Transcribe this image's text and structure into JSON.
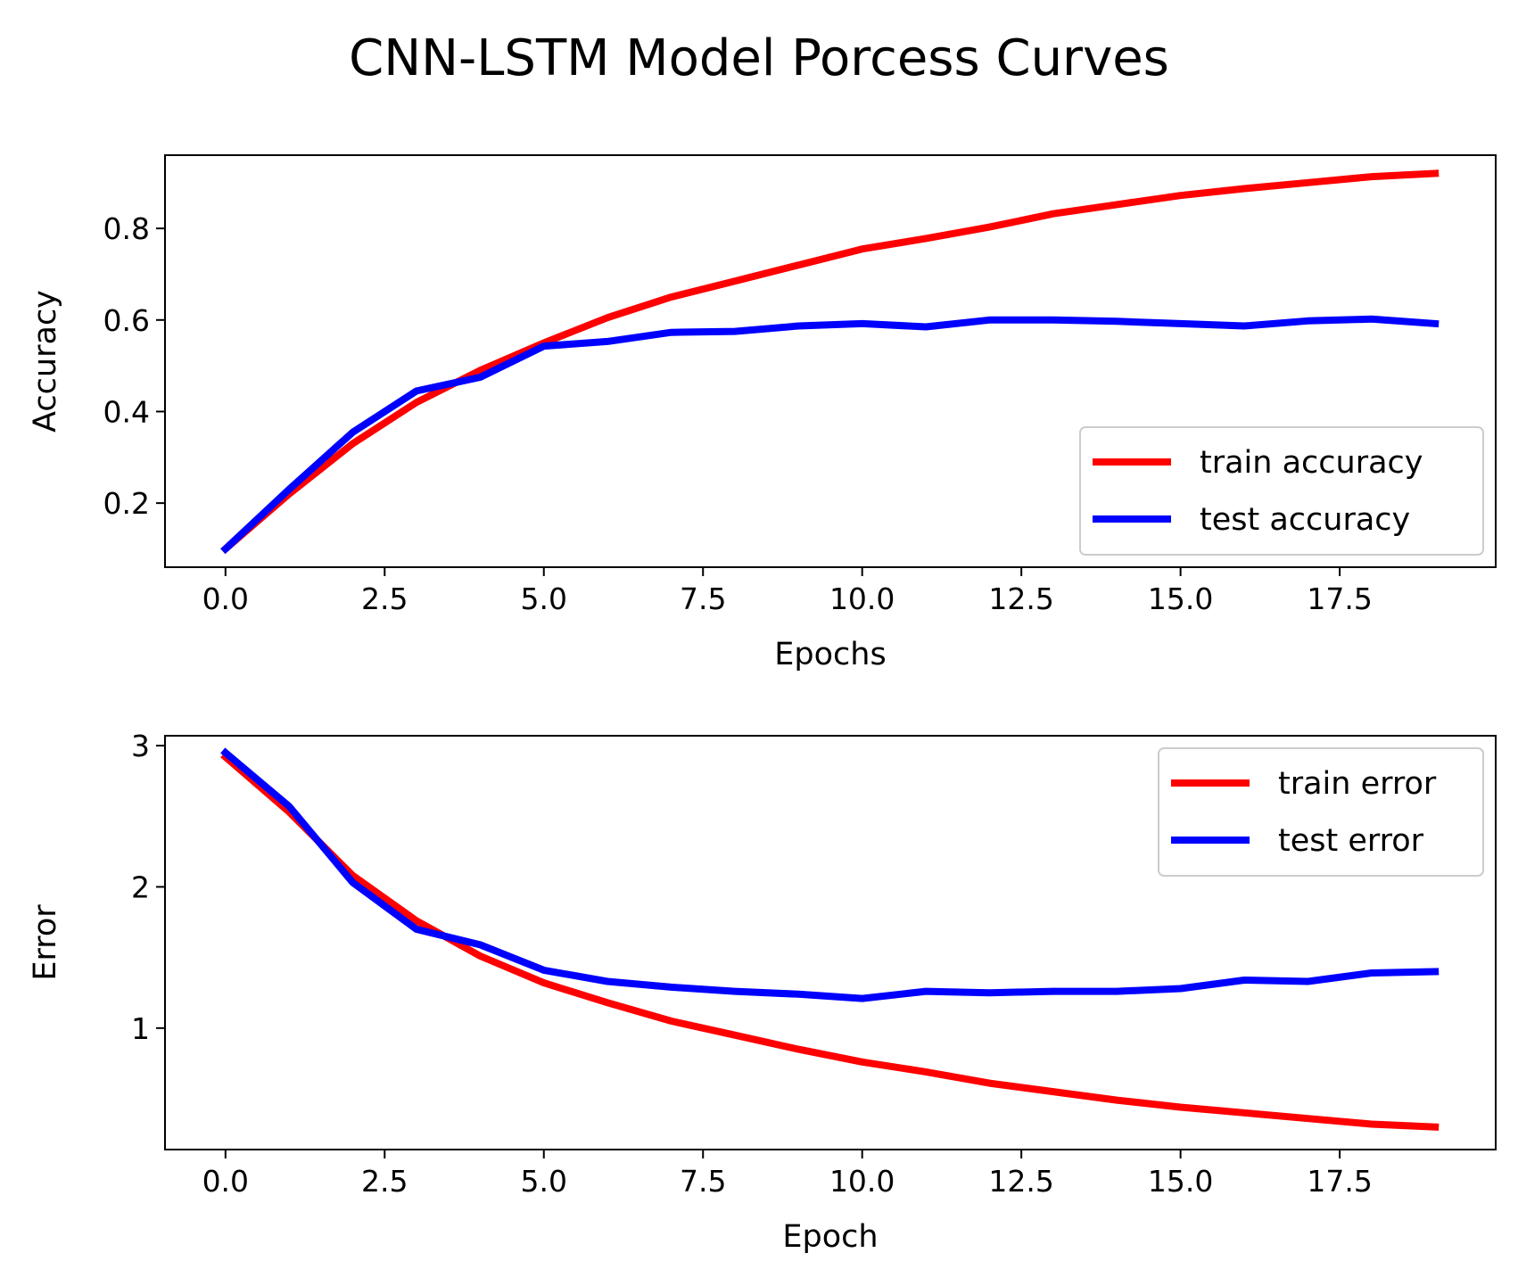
{
  "figure": {
    "title": "CNN-LSTM Model Porcess Curves"
  },
  "chart_data": [
    {
      "type": "line",
      "xlabel": "Epochs",
      "ylabel": "Accuracy",
      "xlim": [
        -0.95,
        19.95
      ],
      "ylim": [
        0.06,
        0.96
      ],
      "xticks": [
        0.0,
        2.5,
        5.0,
        7.5,
        10.0,
        12.5,
        15.0,
        17.5
      ],
      "xtick_labels": [
        "0.0",
        "2.5",
        "5.0",
        "7.5",
        "10.0",
        "12.5",
        "15.0",
        "17.5"
      ],
      "yticks": [
        0.2,
        0.4,
        0.6,
        0.8
      ],
      "ytick_labels": [
        "0.2",
        "0.4",
        "0.6",
        "0.8"
      ],
      "grid": false,
      "legend_position": "lower right",
      "x": [
        0,
        1,
        2,
        3,
        4,
        5,
        6,
        7,
        8,
        9,
        10,
        11,
        12,
        13,
        14,
        15,
        16,
        17,
        18,
        19
      ],
      "series": [
        {
          "name": "train accuracy",
          "color": "#ff0000",
          "values": [
            0.1,
            0.22,
            0.33,
            0.42,
            0.49,
            0.55,
            0.605,
            0.65,
            0.685,
            0.72,
            0.755,
            0.778,
            0.803,
            0.832,
            0.852,
            0.872,
            0.887,
            0.9,
            0.913,
            0.92
          ]
        },
        {
          "name": "test accuracy",
          "color": "#0000ff",
          "values": [
            0.1,
            0.23,
            0.355,
            0.445,
            0.475,
            0.543,
            0.553,
            0.573,
            0.575,
            0.587,
            0.592,
            0.585,
            0.6,
            0.6,
            0.597,
            0.592,
            0.587,
            0.598,
            0.602,
            0.592
          ]
        }
      ]
    },
    {
      "type": "line",
      "xlabel": "Epoch",
      "ylabel": "Error",
      "xlim": [
        -0.95,
        19.95
      ],
      "ylim": [
        0.14,
        3.07
      ],
      "xticks": [
        0.0,
        2.5,
        5.0,
        7.5,
        10.0,
        12.5,
        15.0,
        17.5
      ],
      "xtick_labels": [
        "0.0",
        "2.5",
        "5.0",
        "7.5",
        "10.0",
        "12.5",
        "15.0",
        "17.5"
      ],
      "yticks": [
        1,
        2,
        3
      ],
      "ytick_labels": [
        "1",
        "2",
        "3"
      ],
      "grid": false,
      "legend_position": "upper right",
      "x": [
        0,
        1,
        2,
        3,
        4,
        5,
        6,
        7,
        8,
        9,
        10,
        11,
        12,
        13,
        14,
        15,
        16,
        17,
        18,
        19
      ],
      "series": [
        {
          "name": "train error",
          "color": "#ff0000",
          "values": [
            2.92,
            2.53,
            2.08,
            1.76,
            1.51,
            1.32,
            1.18,
            1.05,
            0.95,
            0.85,
            0.76,
            0.69,
            0.61,
            0.55,
            0.49,
            0.44,
            0.4,
            0.36,
            0.32,
            0.3
          ]
        },
        {
          "name": "test error",
          "color": "#0000ff",
          "values": [
            2.95,
            2.57,
            2.03,
            1.7,
            1.59,
            1.41,
            1.33,
            1.29,
            1.26,
            1.24,
            1.21,
            1.26,
            1.25,
            1.26,
            1.26,
            1.28,
            1.34,
            1.33,
            1.39,
            1.4
          ]
        }
      ]
    }
  ]
}
